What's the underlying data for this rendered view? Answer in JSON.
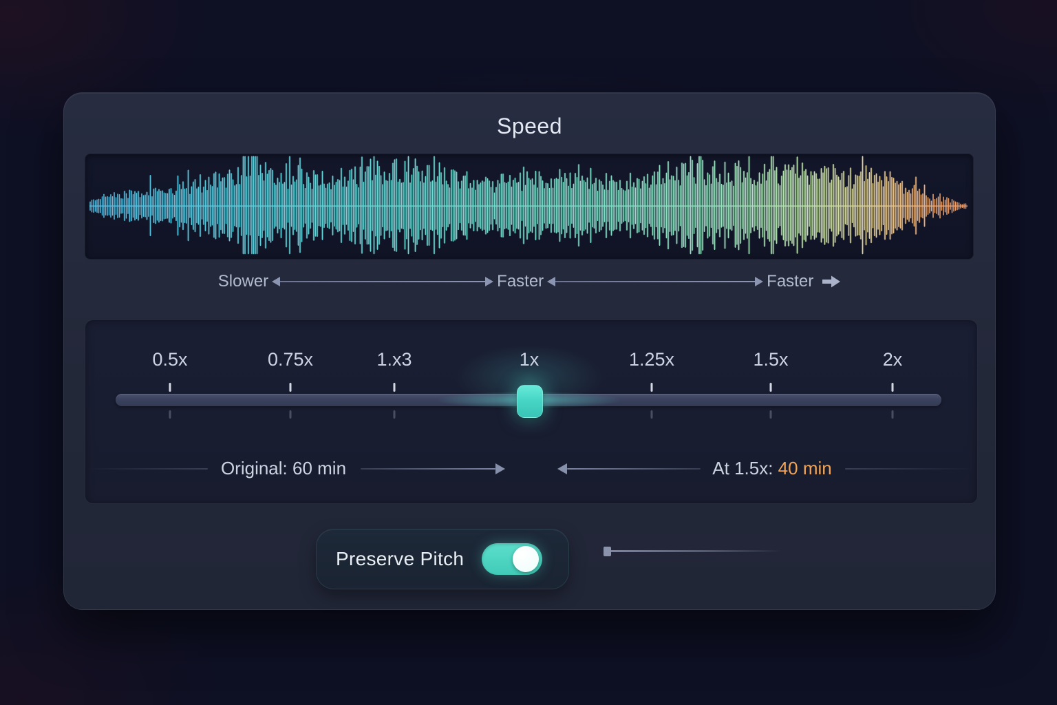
{
  "panel": {
    "title": "Speed"
  },
  "direction_row": {
    "slower_label": "Slower",
    "faster_mid_label": "Faster",
    "faster_right_label": "Faster"
  },
  "speed_slider": {
    "tick_labels": [
      "0.5x",
      "0.75x",
      "1.x3",
      "1x",
      "1.25x",
      "1.5x",
      "2x"
    ],
    "selected_label": "1x"
  },
  "duration_row": {
    "original_label": "Original: 60 min",
    "at_speed_prefix": "At 1.5x: ",
    "at_speed_value": "40 min"
  },
  "preserve_pitch": {
    "label": "Preserve Pitch",
    "enabled": true
  },
  "colors": {
    "accent_teal": "#48D6C6",
    "accent_orange": "#F0A558",
    "waveform_start": "#56BCE2",
    "waveform_mid": "#7FE0C9",
    "waveform_end": "#EF9E66",
    "track": "#3A425D"
  }
}
